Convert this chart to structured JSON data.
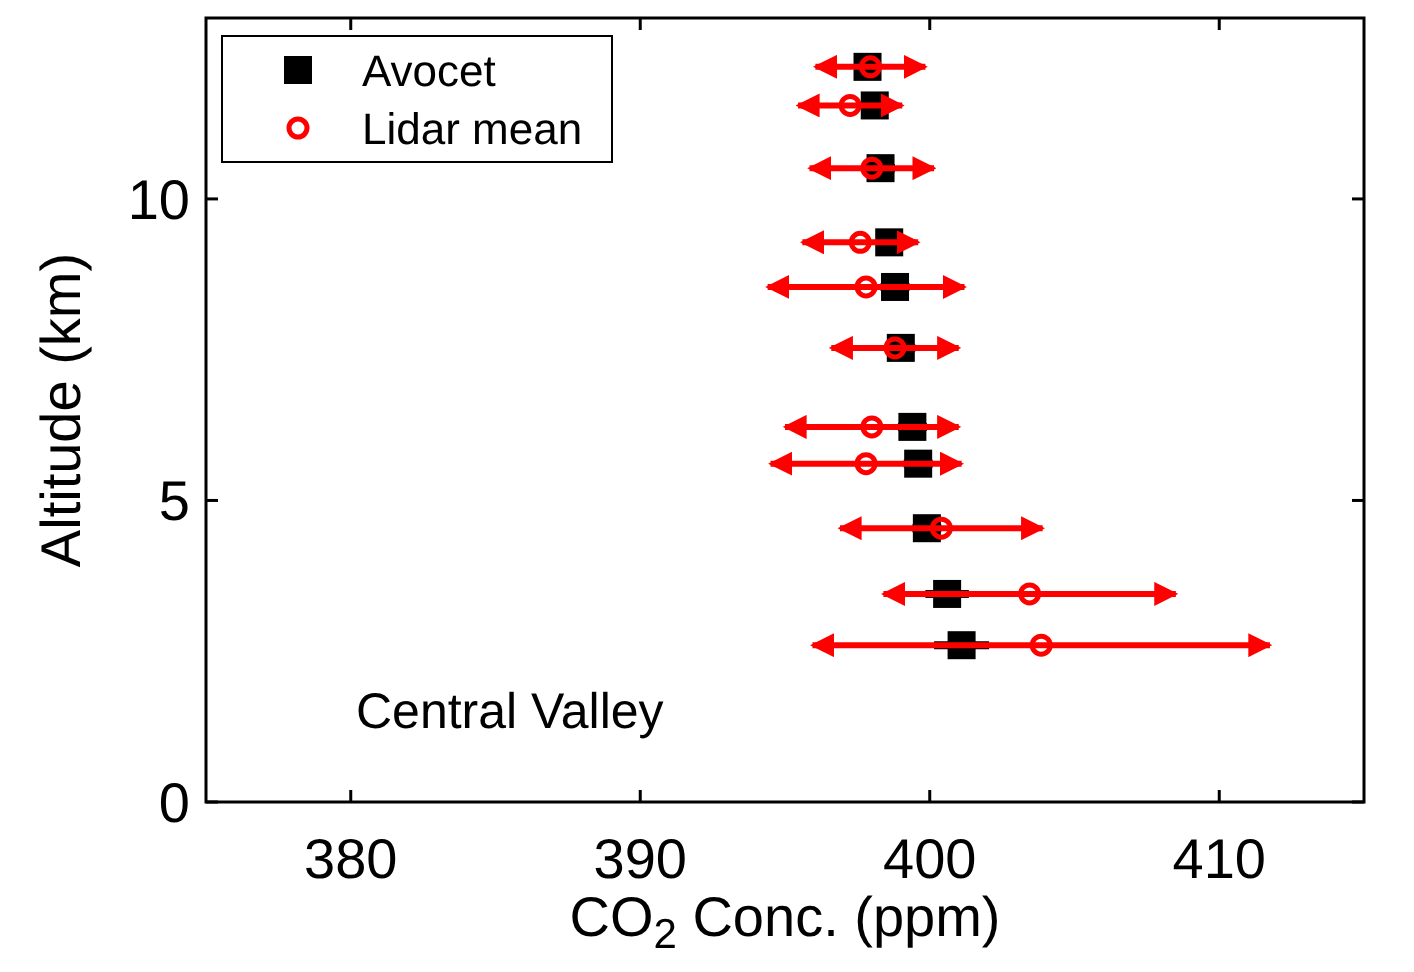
{
  "chart_data": {
    "type": "scatter",
    "xlabel": "CO$_{2}$ Conc. (ppm)",
    "ylabel": "Altitude (km)",
    "xlim": [
      375,
      415
    ],
    "xticks": [
      380,
      390,
      400,
      410
    ],
    "ylim": [
      0,
      13
    ],
    "yticks": [
      0,
      5,
      10
    ],
    "grid": false,
    "legend": "top left",
    "annotations": [
      "Central Valley"
    ],
    "series": [
      {
        "name": "Avocet",
        "color": "#000000",
        "marker": "square",
        "x": [
          397.85,
          398.1,
          398.3,
          398.6,
          398.8,
          399.0,
          399.4,
          399.6,
          399.9,
          400.6,
          401.1
        ],
        "values": [
          12.19,
          11.55,
          10.51,
          9.28,
          8.54,
          7.53,
          6.22,
          5.61,
          4.54,
          3.45,
          2.6
        ],
        "xerrors": [
          0.4,
          0.5,
          0.5,
          0.4,
          0.5,
          0.5,
          0.5,
          0.5,
          0.5,
          0.75,
          0.95
        ]
      },
      {
        "name": "Lidar mean",
        "color": "#ff0000",
        "marker": "circle",
        "x": [
          397.95,
          397.25,
          398.0,
          397.6,
          397.8,
          398.8,
          398.0,
          397.8,
          400.4,
          403.45,
          403.85
        ],
        "values": [
          12.19,
          11.55,
          10.51,
          9.28,
          8.54,
          7.53,
          6.22,
          5.61,
          4.54,
          3.45,
          2.6
        ],
        "xerrors": [
          1.9,
          1.8,
          2.15,
          2.0,
          3.4,
          2.2,
          3.0,
          3.3,
          3.5,
          5.05,
          7.9
        ]
      }
    ]
  }
}
